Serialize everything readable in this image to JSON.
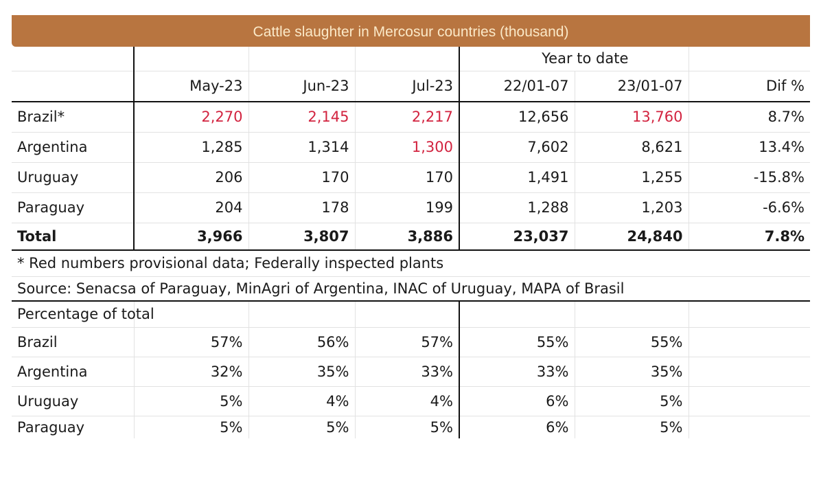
{
  "chart_data": {
    "type": "table",
    "title": "Cattle slaughter in Mercosur countries (thousand)",
    "group_header": "Year to date",
    "columns": [
      "May-23",
      "Jun-23",
      "Jul-23",
      "22/01-07",
      "23/01-07",
      "Dif %"
    ],
    "rows": [
      {
        "label": "Brazil*",
        "values": [
          "2,270",
          "2,145",
          "2,217",
          "12,656",
          "13,760",
          "8.7%"
        ],
        "provisional": [
          true,
          true,
          true,
          false,
          true,
          false
        ]
      },
      {
        "label": "Argentina",
        "values": [
          "1,285",
          "1,314",
          "1,300",
          "7,602",
          "8,621",
          "13.4%"
        ],
        "provisional": [
          false,
          false,
          true,
          false,
          false,
          false
        ]
      },
      {
        "label": "Uruguay",
        "values": [
          "206",
          "170",
          "170",
          "1,491",
          "1,255",
          "-15.8%"
        ],
        "provisional": [
          false,
          false,
          false,
          false,
          false,
          false
        ]
      },
      {
        "label": "Paraguay",
        "values": [
          "204",
          "178",
          "199",
          "1,288",
          "1,203",
          "-6.6%"
        ],
        "provisional": [
          false,
          false,
          false,
          false,
          false,
          false
        ]
      },
      {
        "label": "Total",
        "values": [
          "3,966",
          "3,807",
          "3,886",
          "23,037",
          "24,840",
          "7.8%"
        ],
        "provisional": [
          false,
          false,
          false,
          false,
          false,
          false
        ]
      }
    ],
    "footnote": "* Red numbers provisional data; Federally inspected plants",
    "source": "Source: Senacsa of Paraguay, MinAgri of Argentina, INAC of Uruguay, MAPA of Brasil",
    "percentage_header": "Percentage of total",
    "percentage_rows": [
      {
        "label": "Brazil",
        "values": [
          "57%",
          "56%",
          "57%",
          "55%",
          "55%"
        ]
      },
      {
        "label": "Argentina",
        "values": [
          "32%",
          "35%",
          "33%",
          "33%",
          "35%"
        ]
      },
      {
        "label": "Uruguay",
        "values": [
          "5%",
          "4%",
          "4%",
          "6%",
          "5%"
        ]
      },
      {
        "label": "Paraguay",
        "values": [
          "5%",
          "5%",
          "5%",
          "6%",
          "5%"
        ]
      }
    ]
  },
  "colors": {
    "title_bar": "#b87540",
    "title_text": "#fbe9c8",
    "provisional": "#d2233f"
  }
}
